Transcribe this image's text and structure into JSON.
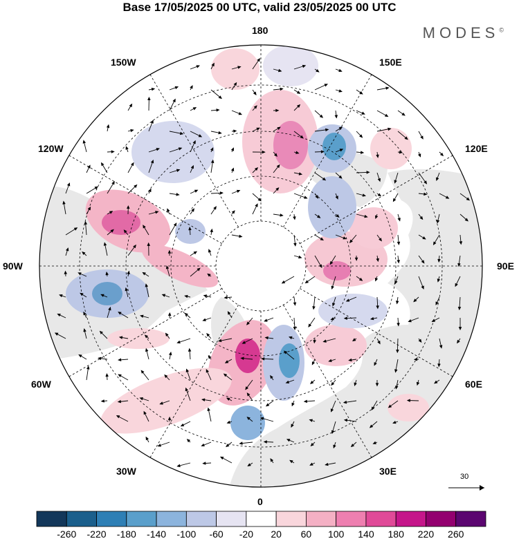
{
  "title": "Base 17/05/2025 00 UTC, valid 23/05/2025 00 UTC",
  "brand": "MODES",
  "brand_mark": "©",
  "longitude_labels": {
    "top": "180",
    "bottom": "0",
    "left": "90W",
    "right": "90E",
    "nw1": "150W",
    "nw2": "120W",
    "ne1": "150E",
    "ne2": "120E",
    "sw1": "60W",
    "sw2": "30W",
    "se1": "60E",
    "se2": "30E"
  },
  "reference_vector": "30",
  "colorbar": {
    "ticks": [
      "-260",
      "-220",
      "-180",
      "-140",
      "-100",
      "-60",
      "-20",
      "20",
      "60",
      "100",
      "140",
      "180",
      "220",
      "260"
    ],
    "colors": [
      "#13375a",
      "#1b5f8c",
      "#2e7fb5",
      "#5a9fcb",
      "#8cb4dd",
      "#bdc8e6",
      "#e6e4f2",
      "#ffffff",
      "#f9d6dc",
      "#f4b0c4",
      "#ee7fb0",
      "#e04a98",
      "#c5168a",
      "#93006f",
      "#5b0670"
    ]
  },
  "map_colors": {
    "land": "#e8e8e8",
    "ocean": "#ffffff",
    "positive": "#f2b8c8",
    "positive_strong": "#e46aa6",
    "negative": "#b9c5e4",
    "negative_strong": "#4f88c2",
    "grid": "#000000"
  }
}
